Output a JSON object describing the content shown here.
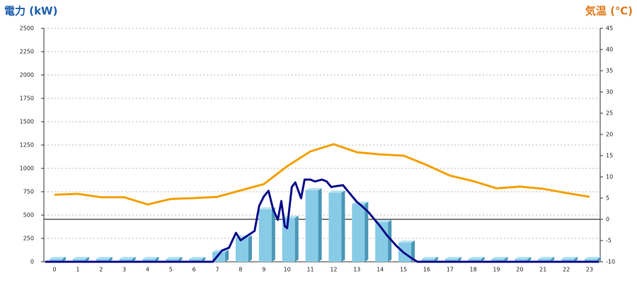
{
  "chart_data": {
    "type": "bar",
    "title": "電力 (kW)",
    "y2_title": "気温 (℃)",
    "categories": [
      "0",
      "1",
      "2",
      "3",
      "4",
      "5",
      "6",
      "7",
      "8",
      "9",
      "10",
      "11",
      "12",
      "13",
      "14",
      "15",
      "16",
      "17",
      "18",
      "19",
      "20",
      "21",
      "22",
      "23"
    ],
    "ylim": [
      0,
      2500
    ],
    "yticks": [
      0,
      250,
      500,
      750,
      1000,
      1250,
      1500,
      1750,
      2000,
      2250,
      2500
    ],
    "y2lim": [
      -10,
      45
    ],
    "y2ticks": [
      -10,
      -5,
      0,
      5,
      10,
      15,
      20,
      25,
      30,
      35,
      40,
      45
    ],
    "grid": true,
    "title_color": "#1f5fae",
    "y2_title_color": "#e07a1a",
    "series": [
      {
        "type": "bar",
        "color": "#87cbe6",
        "values": [
          0,
          0,
          0,
          0,
          0,
          0,
          0,
          75,
          230,
          530,
          440,
          735,
          710,
          590,
          395,
          175,
          0,
          0,
          0,
          0,
          0,
          0,
          0,
          0
        ]
      },
      {
        "type": "line",
        "color": "#0b0b8a",
        "x": [
          -0.4,
          6.8,
          7.2,
          7.5,
          7.8,
          8.0,
          8.3,
          8.6,
          8.8,
          9.0,
          9.2,
          9.4,
          9.6,
          9.75,
          9.9,
          10.0,
          10.2,
          10.35,
          10.6,
          10.75,
          11.0,
          11.2,
          11.5,
          11.7,
          11.9,
          12.1,
          12.4,
          12.6,
          13.0,
          13.2,
          13.5,
          14.0,
          14.3,
          14.7,
          15.0,
          15.4,
          15.6,
          23.4
        ],
        "values": [
          0,
          0,
          120,
          150,
          310,
          230,
          280,
          330,
          600,
          700,
          760,
          560,
          450,
          650,
          380,
          360,
          800,
          850,
          680,
          880,
          880,
          860,
          880,
          860,
          800,
          810,
          820,
          760,
          640,
          600,
          530,
          380,
          280,
          170,
          100,
          30,
          0,
          0
        ]
      },
      {
        "type": "line",
        "color": "#f5a000",
        "axis": "y2",
        "values": [
          5.8,
          6,
          5.2,
          5.2,
          3.5,
          4.8,
          5,
          5.3,
          6.8,
          8.3,
          12.5,
          16,
          17.7,
          15.8,
          15.3,
          15,
          12.8,
          10.3,
          9,
          7.3,
          7.7,
          7.2,
          6.2,
          5.3
        ]
      }
    ]
  }
}
